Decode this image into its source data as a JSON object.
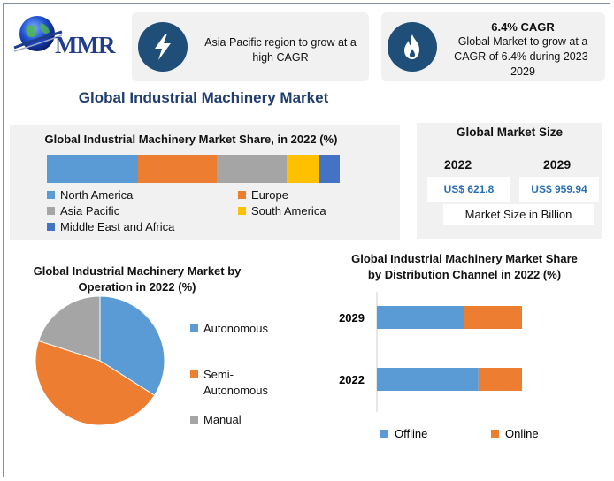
{
  "logo": {
    "text": "MMR",
    "icon": "globe-icon"
  },
  "cards": {
    "growth": {
      "icon": "lightning-icon",
      "text": "Asia Pacific region to grow at a high CAGR"
    },
    "cagr": {
      "icon": "flame-icon",
      "title": "6.4% CAGR",
      "text": "Global Market to grow at a CAGR of 6.4% during 2023-2029"
    }
  },
  "main_title": "Global Industrial Machinery Market",
  "market_size": {
    "title": "Global Market Size",
    "years": [
      "2022",
      "2029"
    ],
    "values": [
      "US$ 621.8",
      "US$ 959.94"
    ],
    "note": "Market Size in Billion"
  },
  "colors": {
    "blue": "#5b9bd5",
    "orange": "#ed7d31",
    "gray": "#a5a5a5",
    "yellow": "#ffc000",
    "darkblue": "#4472c4",
    "navy": "#1f4e79"
  },
  "chart_data": [
    {
      "type": "bar",
      "stacked": true,
      "orientation": "horizontal",
      "title": "Global Industrial Machinery Market Share, in 2022 (%)",
      "series": [
        {
          "name": "North America",
          "value": 31,
          "color": "#5b9bd5"
        },
        {
          "name": "Europe",
          "value": 27,
          "color": "#ed7d31"
        },
        {
          "name": "Asia Pacific",
          "value": 24,
          "color": "#a5a5a5"
        },
        {
          "name": "South America",
          "value": 11,
          "color": "#ffc000"
        },
        {
          "name": "Middle East and Africa",
          "value": 7,
          "color": "#4472c4"
        }
      ],
      "legend": "bottom"
    },
    {
      "type": "pie",
      "title": "Global Industrial Machinery Market by Operation in 2022 (%)",
      "slices": [
        {
          "name": "Autonomous",
          "value": 34,
          "color": "#5b9bd5"
        },
        {
          "name": "Semi-Autonomous",
          "value": 46,
          "color": "#ed7d31"
        },
        {
          "name": "Manual",
          "value": 20,
          "color": "#a5a5a5"
        }
      ],
      "legend": "right"
    },
    {
      "type": "bar",
      "stacked": true,
      "orientation": "horizontal",
      "title": "Global Industrial Machinery Market Share by Distribution Channel in 2022 (%)",
      "categories": [
        "2029",
        "2022"
      ],
      "series": [
        {
          "name": "Offline",
          "values": [
            60,
            70
          ],
          "color": "#5b9bd5"
        },
        {
          "name": "Online",
          "values": [
            40,
            30
          ],
          "color": "#ed7d31"
        }
      ],
      "xlim": [
        0,
        100
      ],
      "legend": "bottom"
    }
  ]
}
